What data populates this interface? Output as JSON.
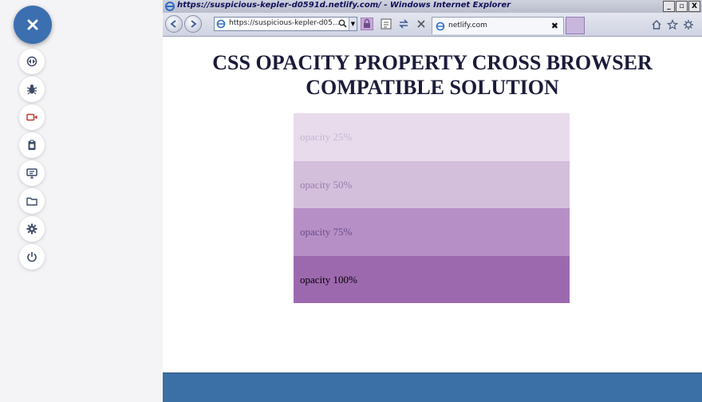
{
  "browser": {
    "title": "https://suspicious-kepler-d0591d.netlify.com/ - Windows Internet Explorer",
    "address": "https://suspicious-kepler-d05...",
    "tab_label": "netlify.com",
    "tab_close": "✖",
    "window_buttons": [
      "_",
      "▫",
      "X"
    ]
  },
  "page": {
    "heading_line1": "CSS OPACITY PROPERTY CROSS BROWSER",
    "heading_line2": "COMPATIBLE SOLUTION",
    "boxes": [
      {
        "label": "opacity 25%",
        "color": "#e7dbec"
      },
      {
        "label": "opacity 50%",
        "color": "#d3bfdc"
      },
      {
        "label": "opacity 75%",
        "color": "#b68fc6"
      },
      {
        "label": "opacity 100%",
        "color": "#9d69ae"
      }
    ]
  },
  "rail": {
    "fab_icon": "close-icon",
    "tools": [
      "sync-icon",
      "bug-icon",
      "video-icon",
      "clipboard-icon",
      "monitor-icon",
      "folder-icon",
      "gear-icon",
      "power-icon"
    ]
  },
  "colors": {
    "accent": "#3b6fb0",
    "footer": "#3a70a6",
    "heading": "#1b1b3a"
  }
}
